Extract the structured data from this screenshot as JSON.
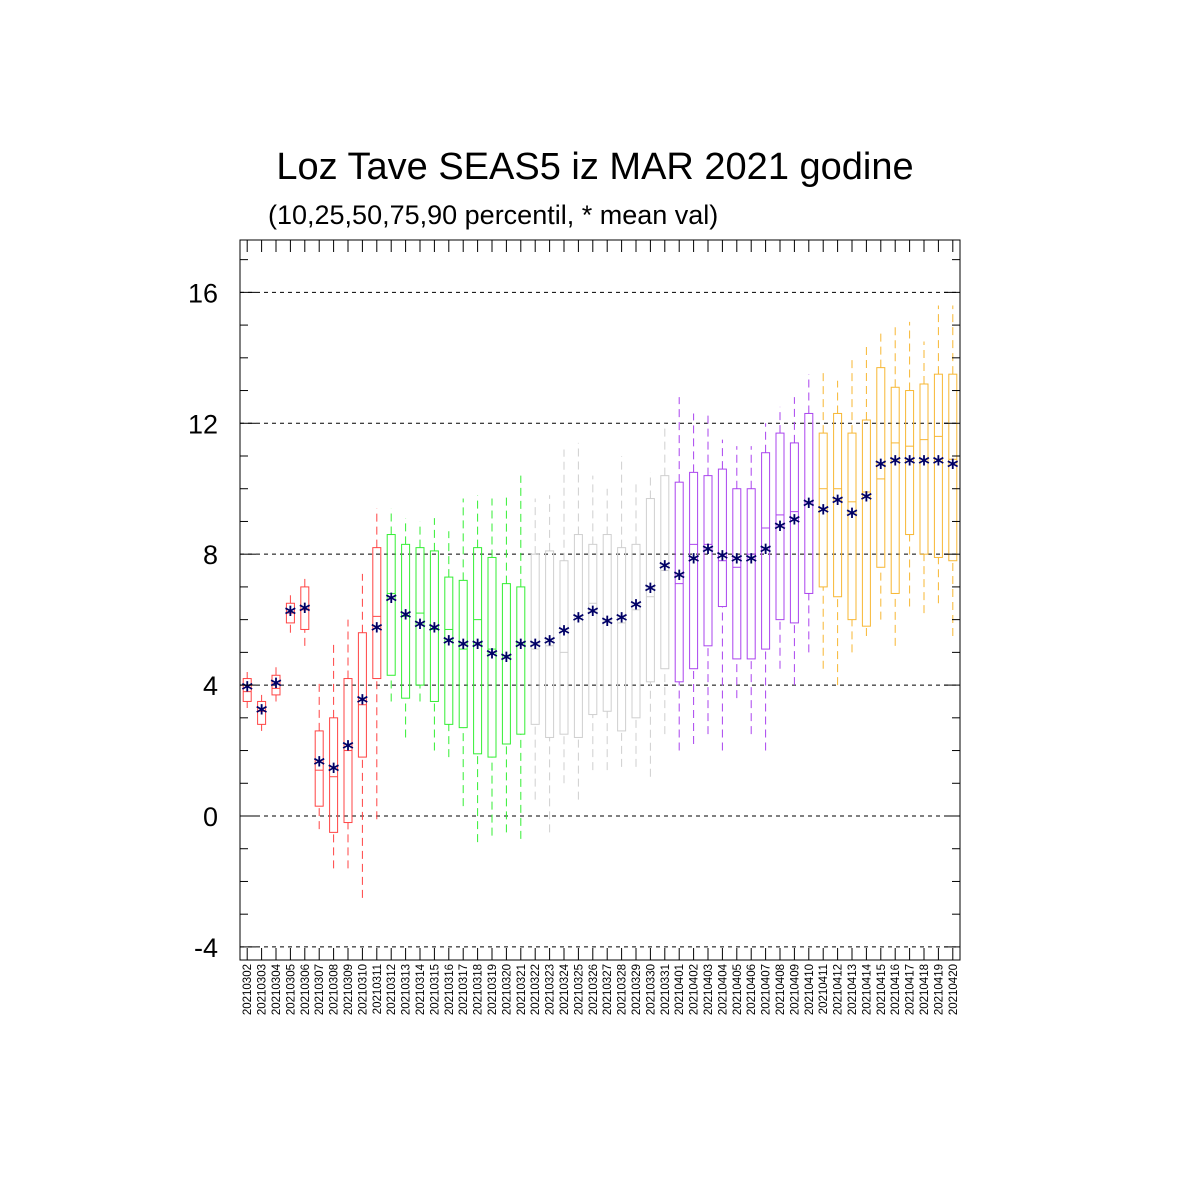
{
  "chart_data": {
    "type": "boxplot",
    "title": "Loz Tave SEAS5 iz MAR 2021 godine",
    "subtitle": "(10,25,50,75,90 percentil, * mean val)",
    "xlabel": "",
    "ylabel": "",
    "ylim": [
      -4.4,
      17.6
    ],
    "yticks": [
      -4,
      0,
      4,
      8,
      12,
      16
    ],
    "grid": "horizontal dashed at major ticks",
    "categories": [
      "20210302",
      "20210303",
      "20210304",
      "20210305",
      "20210306",
      "20210307",
      "20210308",
      "20210309",
      "20210310",
      "20210311",
      "20210312",
      "20210313",
      "20210314",
      "20210315",
      "20210316",
      "20210317",
      "20210318",
      "20210319",
      "20210320",
      "20210321",
      "20210322",
      "20210323",
      "20210324",
      "20210325",
      "20210326",
      "20210327",
      "20210328",
      "20210329",
      "20210330",
      "20210331",
      "20210401",
      "20210402",
      "20210403",
      "20210404",
      "20210405",
      "20210406",
      "20210407",
      "20210408",
      "20210409",
      "20210410",
      "20210411",
      "20210412",
      "20210413",
      "20210414",
      "20210415",
      "20210416",
      "20210417",
      "20210418",
      "20210419",
      "20210420"
    ],
    "colors": [
      "#ff4444",
      "#ff4444",
      "#ff4444",
      "#ff4444",
      "#ff4444",
      "#ff4444",
      "#ff4444",
      "#ff4444",
      "#ff4444",
      "#ff4444",
      "#33ee33",
      "#33ee33",
      "#33ee33",
      "#33ee33",
      "#33ee33",
      "#33ee33",
      "#33ee33",
      "#33ee33",
      "#33ee33",
      "#33ee33",
      "#cfcfcf",
      "#cfcfcf",
      "#cfcfcf",
      "#cfcfcf",
      "#cfcfcf",
      "#cfcfcf",
      "#cfcfcf",
      "#cfcfcf",
      "#cfcfcf",
      "#cfcfcf",
      "#aa44ee",
      "#aa44ee",
      "#aa44ee",
      "#aa44ee",
      "#aa44ee",
      "#aa44ee",
      "#aa44ee",
      "#aa44ee",
      "#aa44ee",
      "#aa44ee",
      "#f7b733",
      "#f7b733",
      "#f7b733",
      "#f7b733",
      "#f7b733",
      "#f7b733",
      "#f7b733",
      "#f7b733",
      "#f7b733",
      "#f7b733"
    ],
    "mean_color": "#000066",
    "p10": [
      3.3,
      2.6,
      3.5,
      5.6,
      5.2,
      -0.4,
      -1.6,
      -1.6,
      -2.5,
      -0.1,
      3.5,
      2.4,
      3.5,
      2.0,
      1.8,
      0.3,
      -0.8,
      -0.6,
      -0.5,
      -0.7,
      0.5,
      -0.5,
      1.0,
      0.5,
      1.4,
      1.4,
      1.5,
      1.5,
      1.2,
      2.5,
      2.0,
      2.2,
      2.5,
      2.0,
      3.6,
      2.5,
      2.0,
      4.5,
      4.0,
      5.0,
      4.5,
      4.0,
      5.0,
      5.5,
      6.0,
      5.2,
      6.4,
      6.2,
      6.5,
      5.5
    ],
    "p25": [
      3.5,
      2.8,
      3.7,
      5.9,
      5.7,
      0.3,
      -0.5,
      -0.2,
      1.8,
      4.2,
      4.3,
      3.6,
      4.0,
      3.5,
      2.8,
      2.7,
      1.9,
      1.8,
      2.2,
      2.5,
      2.8,
      2.4,
      2.5,
      2.4,
      3.1,
      3.2,
      2.6,
      3.0,
      4.1,
      4.5,
      4.1,
      4.5,
      5.2,
      6.4,
      4.8,
      4.8,
      5.1,
      6.0,
      5.9,
      6.8,
      7.0,
      6.7,
      6.0,
      5.8,
      7.6,
      6.8,
      8.6,
      8.0,
      7.9,
      7.8
    ],
    "p50": [
      3.8,
      3.2,
      3.9,
      6.2,
      6.3,
      1.4,
      1.2,
      2.0,
      3.4,
      6.1,
      6.8,
      6.1,
      6.2,
      5.7,
      5.7,
      5.1,
      6.0,
      5.1,
      4.9,
      5.3,
      5.1,
      5.2,
      5.0,
      6.1,
      6.5,
      6.0,
      5.9,
      6.3,
      6.7,
      7.5,
      7.1,
      8.3,
      8.3,
      7.8,
      7.6,
      8.0,
      8.8,
      9.2,
      9.3,
      9.6,
      10.0,
      10.0,
      9.6,
      9.9,
      10.3,
      11.4,
      11.3,
      11.5,
      11.6,
      10.9
    ],
    "p75": [
      4.2,
      3.5,
      4.3,
      6.5,
      7.0,
      2.6,
      3.0,
      4.2,
      5.6,
      8.2,
      8.6,
      8.3,
      8.2,
      8.1,
      7.3,
      7.2,
      8.2,
      7.9,
      7.1,
      7.0,
      8.0,
      8.1,
      7.8,
      8.6,
      8.3,
      8.6,
      8.2,
      8.3,
      9.7,
      10.4,
      10.2,
      10.5,
      10.4,
      10.6,
      10.0,
      10.0,
      11.1,
      11.7,
      11.4,
      12.3,
      11.7,
      12.3,
      11.7,
      12.1,
      13.7,
      13.1,
      13.0,
      13.2,
      13.5,
      13.5
    ],
    "p90": [
      4.4,
      3.7,
      4.6,
      6.8,
      7.3,
      4.1,
      5.3,
      6.0,
      7.4,
      9.4,
      9.4,
      9.1,
      9.0,
      9.1,
      8.7,
      9.7,
      9.8,
      9.7,
      9.8,
      10.4,
      9.7,
      9.8,
      11.2,
      11.4,
      10.4,
      10.0,
      11.0,
      10.2,
      10.5,
      12.0,
      12.8,
      12.3,
      12.3,
      11.5,
      11.3,
      11.3,
      12.0,
      12.5,
      12.8,
      13.5,
      13.6,
      13.3,
      14.0,
      14.4,
      14.8,
      15.0,
      15.1,
      14.5,
      15.6,
      15.6
    ],
    "mean": [
      3.9,
      3.2,
      4.0,
      6.2,
      6.3,
      1.6,
      1.4,
      2.1,
      3.5,
      5.7,
      6.6,
      6.1,
      5.8,
      5.7,
      5.3,
      5.2,
      5.2,
      4.9,
      4.8,
      5.2,
      5.2,
      5.3,
      5.6,
      6.0,
      6.2,
      5.9,
      6.0,
      6.4,
      6.9,
      7.6,
      7.3,
      7.8,
      8.1,
      7.9,
      7.8,
      7.8,
      8.1,
      8.8,
      9.0,
      9.5,
      9.3,
      9.6,
      9.2,
      9.7,
      10.7,
      10.8,
      10.8,
      10.8,
      10.8,
      10.7
    ]
  }
}
